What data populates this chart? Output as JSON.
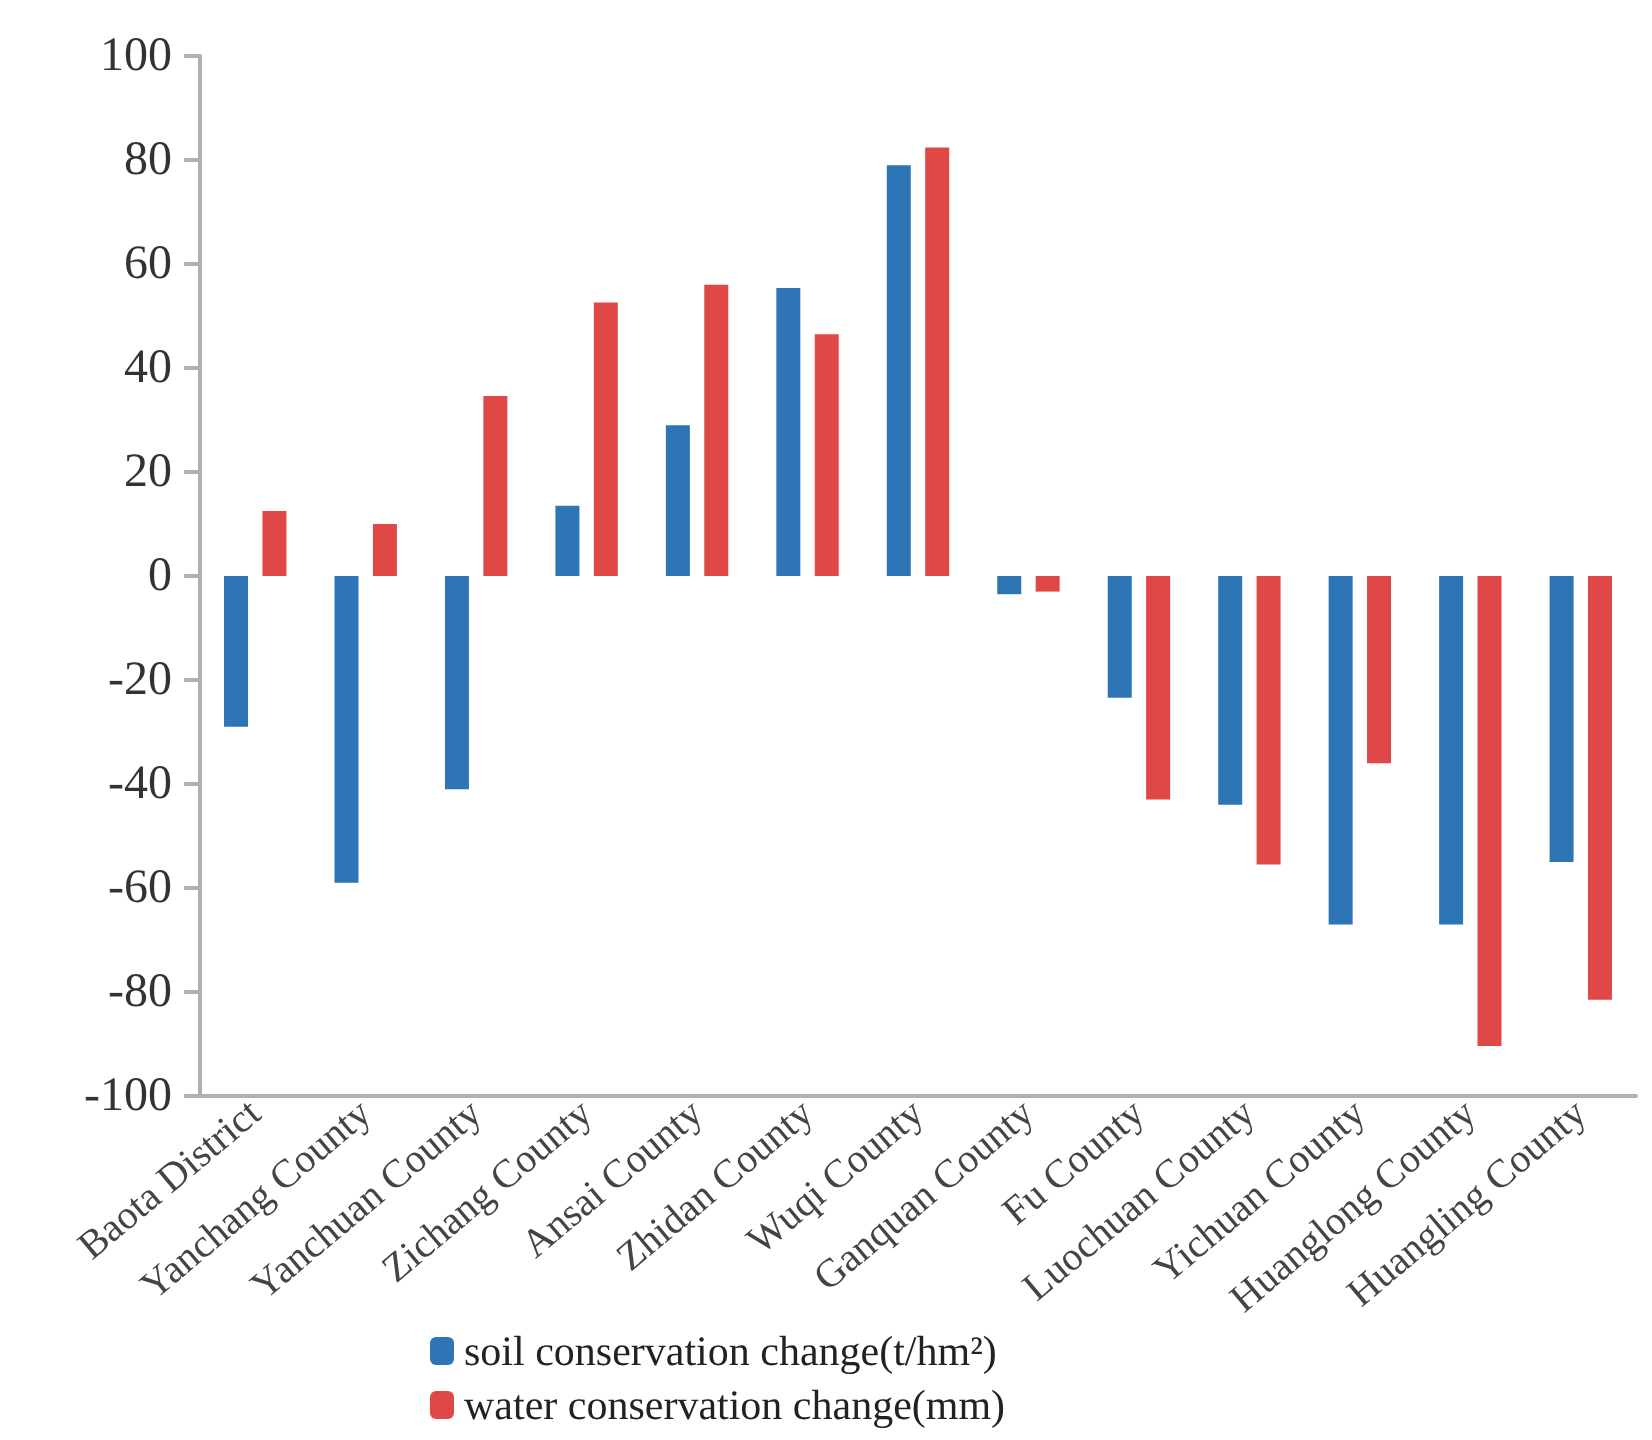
{
  "chart_data": {
    "type": "bar",
    "categories": [
      "Baota District",
      "Yanchang County",
      "Yanchuan County",
      "Zichang County",
      "Ansai County",
      "Zhidan County",
      "Wuqi County",
      "Ganquan County",
      "Fu County",
      "Luochuan County",
      "Yichuan County",
      "Huanglong County",
      "Huangling County"
    ],
    "series": [
      {
        "name": "soil conservation change(t/hm²)",
        "color": "#2e75b6",
        "values": [
          -29,
          -59,
          -41,
          13.5,
          29,
          55.4,
          79,
          -3.5,
          -23.4,
          -44,
          -67,
          -67,
          -55
        ]
      },
      {
        "name": "water conservation change(mm)",
        "color": "#e04848",
        "values": [
          12.5,
          10,
          34.6,
          52.6,
          56,
          46.5,
          82.4,
          -3,
          -43,
          -55.5,
          -36,
          -90.4,
          -81.5
        ]
      }
    ],
    "ylim": [
      -100,
      100
    ],
    "yticks": [
      -100,
      -80,
      -60,
      -40,
      -20,
      0,
      20,
      40,
      60,
      80,
      100
    ],
    "grid": false,
    "legend": "bottom"
  }
}
